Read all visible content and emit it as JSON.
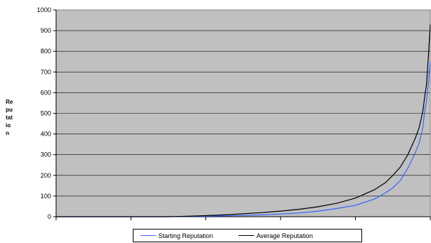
{
  "chart_data": {
    "type": "line",
    "title": "",
    "xlabel": "",
    "ylabel": "Re pu tat io n",
    "ylabel_lines": [
      "Re",
      "pu",
      "tat",
      "io",
      "n"
    ],
    "ylim": [
      0,
      1000
    ],
    "yticks": [
      "0",
      "100",
      "200",
      "300",
      "400",
      "500",
      "600",
      "700",
      "800",
      "900",
      "1000"
    ],
    "x_tick_count": 5,
    "grid": "horizontal",
    "plot_background": "#c0c0c0",
    "legend_position": "bottom",
    "x": [
      0,
      0.05,
      0.1,
      0.15,
      0.2,
      0.25,
      0.3,
      0.35,
      0.4,
      0.45,
      0.5,
      0.55,
      0.6,
      0.65,
      0.7,
      0.75,
      0.8,
      0.85,
      0.88,
      0.9,
      0.92,
      0.94,
      0.95,
      0.96,
      0.97,
      0.98,
      0.985,
      0.99,
      0.995,
      1.0
    ],
    "series": [
      {
        "name": "Starting Reputation",
        "color": "#3366ff",
        "values": [
          0,
          0,
          0,
          0,
          0,
          0,
          0,
          1,
          2,
          4,
          6,
          9,
          13,
          18,
          27,
          40,
          55,
          85,
          115,
          140,
          175,
          235,
          270,
          310,
          355,
          430,
          510,
          560,
          650,
          750
        ]
      },
      {
        "name": "Average Reputation",
        "color": "#000000",
        "values": [
          0,
          0,
          0,
          0,
          0,
          0,
          0,
          2,
          5,
          9,
          14,
          20,
          27,
          36,
          48,
          65,
          90,
          130,
          165,
          200,
          240,
          300,
          340,
          380,
          430,
          510,
          580,
          640,
          780,
          930
        ]
      }
    ]
  }
}
